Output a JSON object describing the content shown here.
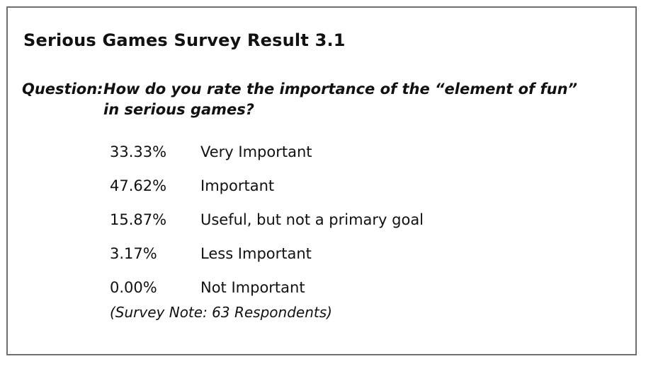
{
  "document": {
    "title": "Serious Games Survey Result 3.1",
    "question": {
      "label": "Question:",
      "line1": "How do you rate the importance of the “element of fun”",
      "line2": "in serious games?"
    },
    "results": [
      {
        "percent": "33.33%",
        "rating": "Very Important"
      },
      {
        "percent": "47.62%",
        "rating": "Important"
      },
      {
        "percent": "15.87%",
        "rating": "Useful, but not a primary goal"
      },
      {
        "percent": "3.17%",
        "rating": "Less Important"
      },
      {
        "percent": "0.00%",
        "rating": "Not Important"
      }
    ],
    "note": "(Survey Note: 63 Respondents)"
  }
}
